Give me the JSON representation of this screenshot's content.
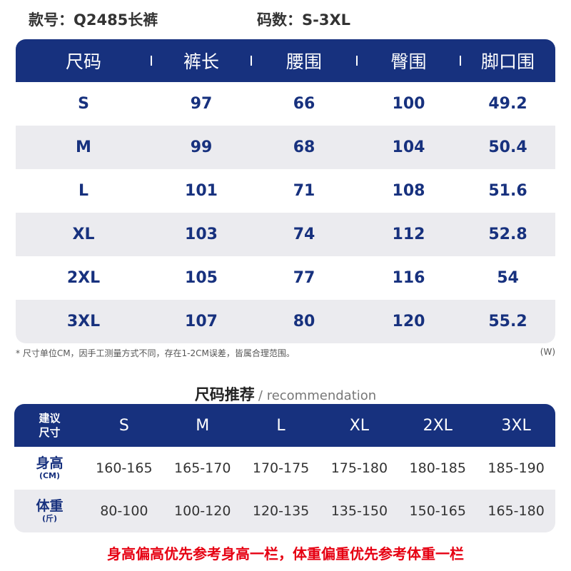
{
  "header": {
    "style_label": "款号：Q2485长裤",
    "size_range_label": "码数：S-3XL"
  },
  "size_table": {
    "columns": [
      "尺码",
      "裤长",
      "腰围",
      "臀围",
      "脚口围"
    ],
    "rows": [
      [
        "S",
        "97",
        "66",
        "100",
        "49.2"
      ],
      [
        "M",
        "99",
        "68",
        "104",
        "50.4"
      ],
      [
        "L",
        "101",
        "71",
        "108",
        "51.6"
      ],
      [
        "XL",
        "103",
        "74",
        "112",
        "52.8"
      ],
      [
        "2XL",
        "105",
        "77",
        "116",
        "54"
      ],
      [
        "3XL",
        "107",
        "80",
        "120",
        "55.2"
      ]
    ]
  },
  "note": "* 尺寸单位CM，因手工测量方式不同，存在1-2CM误差，皆属合理范围。",
  "note_unit": "(W)",
  "recommendation": {
    "title_cn": "尺码推荐",
    "title_en": "/ recommendation",
    "header_label_line1": "建议",
    "header_label_line2": "尺寸",
    "sizes": [
      "S",
      "M",
      "L",
      "XL",
      "2XL",
      "3XL"
    ],
    "height_label": "身高",
    "height_unit": "(CM)",
    "heights": [
      "160-165",
      "165-170",
      "170-175",
      "175-180",
      "180-185",
      "185-190"
    ],
    "weight_label": "体重",
    "weight_unit": "(斤)",
    "weights": [
      "80-100",
      "100-120",
      "120-135",
      "135-150",
      "150-165",
      "165-180"
    ]
  },
  "footer": "身高偏高优先参考身高一栏，体重偏重优先参考体重一栏"
}
